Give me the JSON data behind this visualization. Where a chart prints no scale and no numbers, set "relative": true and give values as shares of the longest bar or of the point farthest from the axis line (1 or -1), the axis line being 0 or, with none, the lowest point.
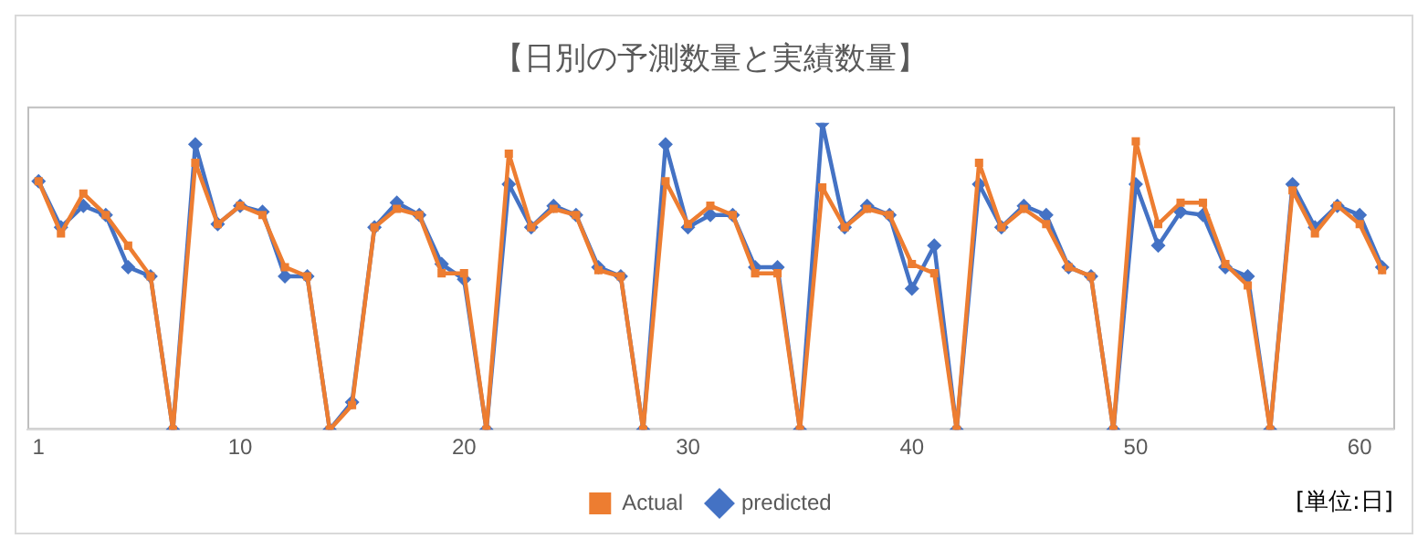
{
  "chart_data": {
    "type": "line",
    "title": "【日別の予測数量と実績数量】",
    "relative": true,
    "x": [
      1,
      2,
      3,
      4,
      5,
      6,
      7,
      8,
      9,
      10,
      11,
      12,
      13,
      14,
      15,
      16,
      17,
      18,
      19,
      20,
      21,
      22,
      23,
      24,
      25,
      26,
      27,
      28,
      29,
      30,
      31,
      32,
      33,
      34,
      35,
      36,
      37,
      38,
      39,
      40,
      41,
      42,
      43,
      44,
      45,
      46,
      47,
      48,
      49,
      50,
      51,
      52,
      53,
      54,
      55,
      56,
      57,
      58,
      59,
      60,
      61
    ],
    "xlim": [
      0.5,
      61.5
    ],
    "xticks": [
      1,
      10,
      20,
      30,
      40,
      50,
      60
    ],
    "series": [
      {
        "name": "predicted",
        "color": "#4472c4",
        "marker": "diamond",
        "values": [
          0.81,
          0.66,
          0.73,
          0.7,
          0.53,
          0.5,
          0,
          0.93,
          0.67,
          0.73,
          0.71,
          0.5,
          0.5,
          0,
          0.09,
          0.66,
          0.74,
          0.7,
          0.54,
          0.49,
          0,
          0.8,
          0.66,
          0.73,
          0.7,
          0.53,
          0.5,
          0,
          0.93,
          0.66,
          0.7,
          0.7,
          0.53,
          0.53,
          0,
          1,
          0.66,
          0.73,
          0.7,
          0.46,
          0.6,
          0,
          0.8,
          0.66,
          0.73,
          0.7,
          0.53,
          0.5,
          0,
          0.8,
          0.6,
          0.71,
          0.7,
          0.53,
          0.5,
          0,
          0.8,
          0.66,
          0.73,
          0.7,
          0.53
        ]
      },
      {
        "name": "Actual",
        "color": "#ed7d31",
        "marker": "square",
        "values": [
          0.81,
          0.64,
          0.77,
          0.7,
          0.6,
          0.5,
          0,
          0.87,
          0.67,
          0.73,
          0.7,
          0.53,
          0.5,
          0,
          0.08,
          0.66,
          0.72,
          0.7,
          0.51,
          0.51,
          0,
          0.9,
          0.66,
          0.72,
          0.7,
          0.52,
          0.5,
          0,
          0.81,
          0.67,
          0.73,
          0.7,
          0.51,
          0.51,
          0,
          0.79,
          0.66,
          0.72,
          0.7,
          0.54,
          0.51,
          0,
          0.87,
          0.66,
          0.72,
          0.67,
          0.53,
          0.5,
          0,
          0.94,
          0.67,
          0.74,
          0.74,
          0.54,
          0.47,
          0,
          0.78,
          0.64,
          0.73,
          0.67,
          0.52
        ]
      }
    ],
    "legend": "bottom",
    "grid": false,
    "annotations": [
      "[単位:日]"
    ]
  }
}
